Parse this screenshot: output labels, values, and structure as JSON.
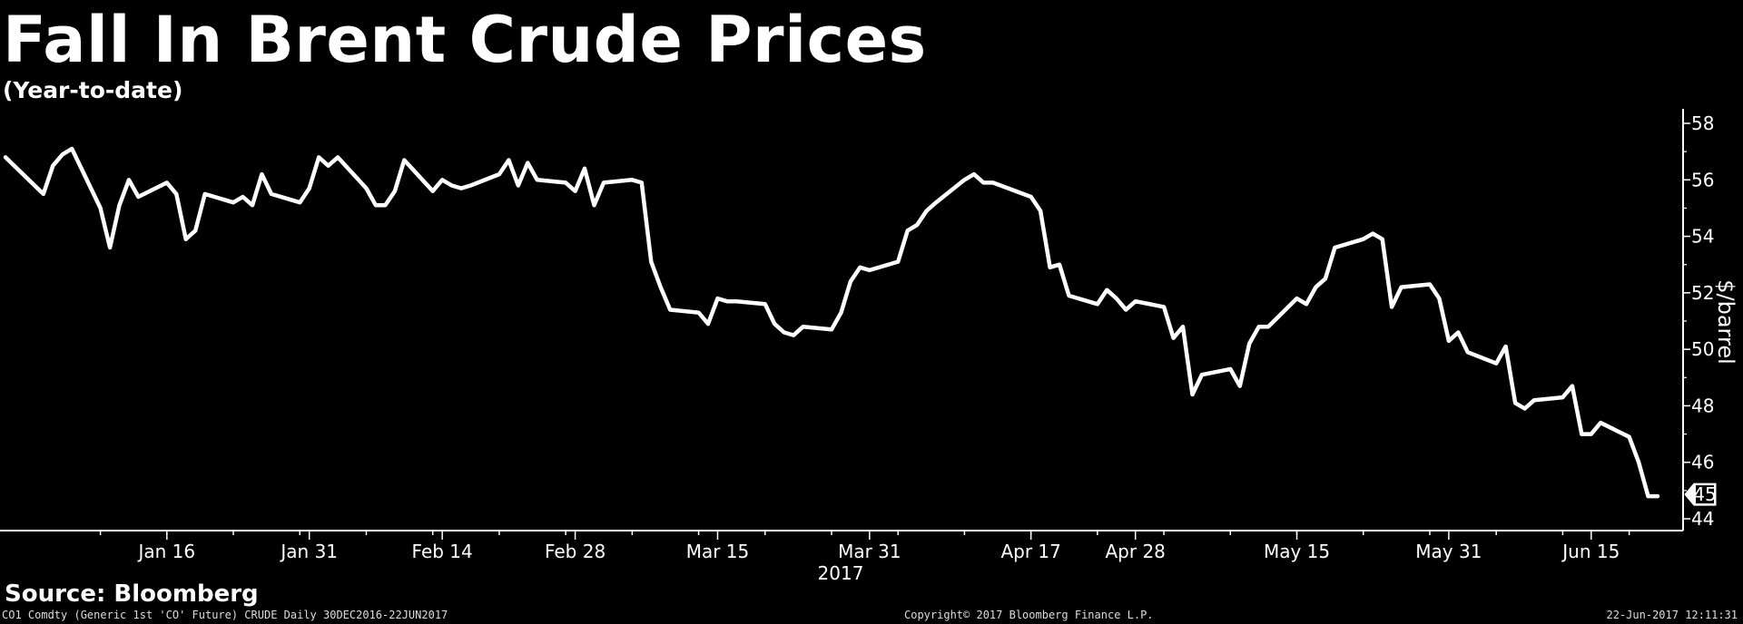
{
  "chart_data": {
    "type": "line",
    "title": "Fall In Brent Crude Prices",
    "subtitle": "(Year-to-date)",
    "ylabel": "$/barrel",
    "ylim": [
      44,
      58.5
    ],
    "yticks": [
      44,
      46,
      48,
      50,
      52,
      54,
      56,
      58
    ],
    "xticks": [
      {
        "date": "2017-01-16",
        "label": "Jan 16"
      },
      {
        "date": "2017-01-31",
        "label": "Jan 31"
      },
      {
        "date": "2017-02-14",
        "label": "Feb 14"
      },
      {
        "date": "2017-02-28",
        "label": "Feb 28"
      },
      {
        "date": "2017-03-15",
        "label": "Mar 15"
      },
      {
        "date": "2017-03-31",
        "label": "Mar 31"
      },
      {
        "date": "2017-04-17",
        "label": "Apr 17"
      },
      {
        "date": "2017-04-28",
        "label": "Apr 28"
      },
      {
        "date": "2017-05-15",
        "label": "May 15"
      },
      {
        "date": "2017-05-31",
        "label": "May 31"
      },
      {
        "date": "2017-06-15",
        "label": "Jun 15"
      }
    ],
    "year_label": "2017",
    "last_value_label": "45",
    "grid": false,
    "series": [
      {
        "color": "#ffffff",
        "points": [
          [
            "2016-12-30",
            56.8
          ],
          [
            "2017-01-03",
            55.5
          ],
          [
            "2017-01-04",
            56.5
          ],
          [
            "2017-01-05",
            56.9
          ],
          [
            "2017-01-06",
            57.1
          ],
          [
            "2017-01-09",
            55.0
          ],
          [
            "2017-01-10",
            53.6
          ],
          [
            "2017-01-11",
            55.1
          ],
          [
            "2017-01-12",
            56.0
          ],
          [
            "2017-01-13",
            55.4
          ],
          [
            "2017-01-16",
            55.9
          ],
          [
            "2017-01-17",
            55.5
          ],
          [
            "2017-01-18",
            53.9
          ],
          [
            "2017-01-19",
            54.2
          ],
          [
            "2017-01-20",
            55.5
          ],
          [
            "2017-01-23",
            55.2
          ],
          [
            "2017-01-24",
            55.4
          ],
          [
            "2017-01-25",
            55.1
          ],
          [
            "2017-01-26",
            56.2
          ],
          [
            "2017-01-27",
            55.5
          ],
          [
            "2017-01-30",
            55.2
          ],
          [
            "2017-01-31",
            55.7
          ],
          [
            "2017-02-01",
            56.8
          ],
          [
            "2017-02-02",
            56.5
          ],
          [
            "2017-02-03",
            56.8
          ],
          [
            "2017-02-06",
            55.7
          ],
          [
            "2017-02-07",
            55.1
          ],
          [
            "2017-02-08",
            55.1
          ],
          [
            "2017-02-09",
            55.6
          ],
          [
            "2017-02-10",
            56.7
          ],
          [
            "2017-02-13",
            55.6
          ],
          [
            "2017-02-14",
            56.0
          ],
          [
            "2017-02-15",
            55.8
          ],
          [
            "2017-02-16",
            55.7
          ],
          [
            "2017-02-17",
            55.8
          ],
          [
            "2017-02-20",
            56.2
          ],
          [
            "2017-02-21",
            56.7
          ],
          [
            "2017-02-22",
            55.8
          ],
          [
            "2017-02-23",
            56.6
          ],
          [
            "2017-02-24",
            56.0
          ],
          [
            "2017-02-27",
            55.9
          ],
          [
            "2017-02-28",
            55.6
          ],
          [
            "2017-03-01",
            56.4
          ],
          [
            "2017-03-02",
            55.1
          ],
          [
            "2017-03-03",
            55.9
          ],
          [
            "2017-03-06",
            56.0
          ],
          [
            "2017-03-07",
            55.9
          ],
          [
            "2017-03-08",
            53.1
          ],
          [
            "2017-03-09",
            52.2
          ],
          [
            "2017-03-10",
            51.4
          ],
          [
            "2017-03-13",
            51.3
          ],
          [
            "2017-03-14",
            50.9
          ],
          [
            "2017-03-15",
            51.8
          ],
          [
            "2017-03-16",
            51.7
          ],
          [
            "2017-03-17",
            51.7
          ],
          [
            "2017-03-20",
            51.6
          ],
          [
            "2017-03-21",
            50.9
          ],
          [
            "2017-03-22",
            50.6
          ],
          [
            "2017-03-23",
            50.5
          ],
          [
            "2017-03-24",
            50.8
          ],
          [
            "2017-03-27",
            50.7
          ],
          [
            "2017-03-28",
            51.3
          ],
          [
            "2017-03-29",
            52.4
          ],
          [
            "2017-03-30",
            52.9
          ],
          [
            "2017-03-31",
            52.8
          ],
          [
            "2017-04-03",
            53.1
          ],
          [
            "2017-04-04",
            54.2
          ],
          [
            "2017-04-05",
            54.4
          ],
          [
            "2017-04-06",
            54.9
          ],
          [
            "2017-04-07",
            55.2
          ],
          [
            "2017-04-10",
            56.0
          ],
          [
            "2017-04-11",
            56.2
          ],
          [
            "2017-04-12",
            55.9
          ],
          [
            "2017-04-13",
            55.9
          ],
          [
            "2017-04-17",
            55.4
          ],
          [
            "2017-04-18",
            54.9
          ],
          [
            "2017-04-19",
            52.9
          ],
          [
            "2017-04-20",
            53.0
          ],
          [
            "2017-04-21",
            51.9
          ],
          [
            "2017-04-24",
            51.6
          ],
          [
            "2017-04-25",
            52.1
          ],
          [
            "2017-04-26",
            51.8
          ],
          [
            "2017-04-27",
            51.4
          ],
          [
            "2017-04-28",
            51.7
          ],
          [
            "2017-05-01",
            51.5
          ],
          [
            "2017-05-02",
            50.4
          ],
          [
            "2017-05-03",
            50.8
          ],
          [
            "2017-05-04",
            48.4
          ],
          [
            "2017-05-05",
            49.1
          ],
          [
            "2017-05-08",
            49.3
          ],
          [
            "2017-05-09",
            48.7
          ],
          [
            "2017-05-10",
            50.2
          ],
          [
            "2017-05-11",
            50.8
          ],
          [
            "2017-05-12",
            50.8
          ],
          [
            "2017-05-15",
            51.8
          ],
          [
            "2017-05-16",
            51.6
          ],
          [
            "2017-05-17",
            52.2
          ],
          [
            "2017-05-18",
            52.5
          ],
          [
            "2017-05-19",
            53.6
          ],
          [
            "2017-05-22",
            53.9
          ],
          [
            "2017-05-23",
            54.1
          ],
          [
            "2017-05-24",
            53.9
          ],
          [
            "2017-05-25",
            51.5
          ],
          [
            "2017-05-26",
            52.2
          ],
          [
            "2017-05-29",
            52.3
          ],
          [
            "2017-05-30",
            51.8
          ],
          [
            "2017-05-31",
            50.3
          ],
          [
            "2017-06-01",
            50.6
          ],
          [
            "2017-06-02",
            49.9
          ],
          [
            "2017-06-05",
            49.5
          ],
          [
            "2017-06-06",
            50.1
          ],
          [
            "2017-06-07",
            48.1
          ],
          [
            "2017-06-08",
            47.9
          ],
          [
            "2017-06-09",
            48.2
          ],
          [
            "2017-06-12",
            48.3
          ],
          [
            "2017-06-13",
            48.7
          ],
          [
            "2017-06-14",
            47.0
          ],
          [
            "2017-06-15",
            47.0
          ],
          [
            "2017-06-16",
            47.4
          ],
          [
            "2017-06-19",
            46.9
          ],
          [
            "2017-06-20",
            46.0
          ],
          [
            "2017-06-21",
            44.8
          ],
          [
            "2017-06-22",
            44.8
          ]
        ]
      }
    ]
  },
  "source": "Source: Bloomberg",
  "footer": {
    "left": "CO1 Comdty (Generic 1st 'CO' Future) CRUDE  Daily 30DEC2016-22JUN2017",
    "center": "Copyright© 2017 Bloomberg Finance L.P.",
    "right": "22-Jun-2017 12:11:31"
  }
}
